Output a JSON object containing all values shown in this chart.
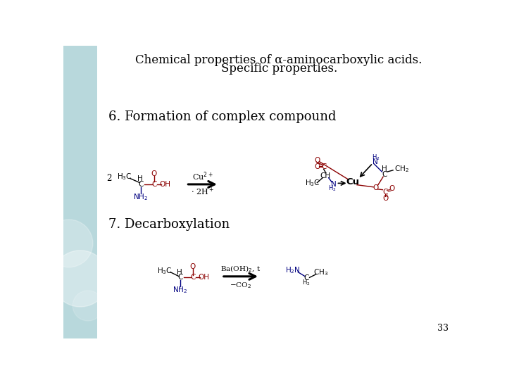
{
  "title_line1": "Chemical properties of α-aminocarboxylic acids.",
  "title_line2": "Specific properties.",
  "section1": "6. Formation of complex compound",
  "section2": "7. Decarboxylation",
  "dark_red": "#8B0000",
  "blue_dark": "#000080",
  "black": "#000000",
  "bg_color": "#FFFFFF",
  "sidebar_color": "#B8D8DC",
  "slide_number": "33",
  "title_fontsize": 12,
  "section_fontsize": 13,
  "chem_fontsize": 7.5
}
